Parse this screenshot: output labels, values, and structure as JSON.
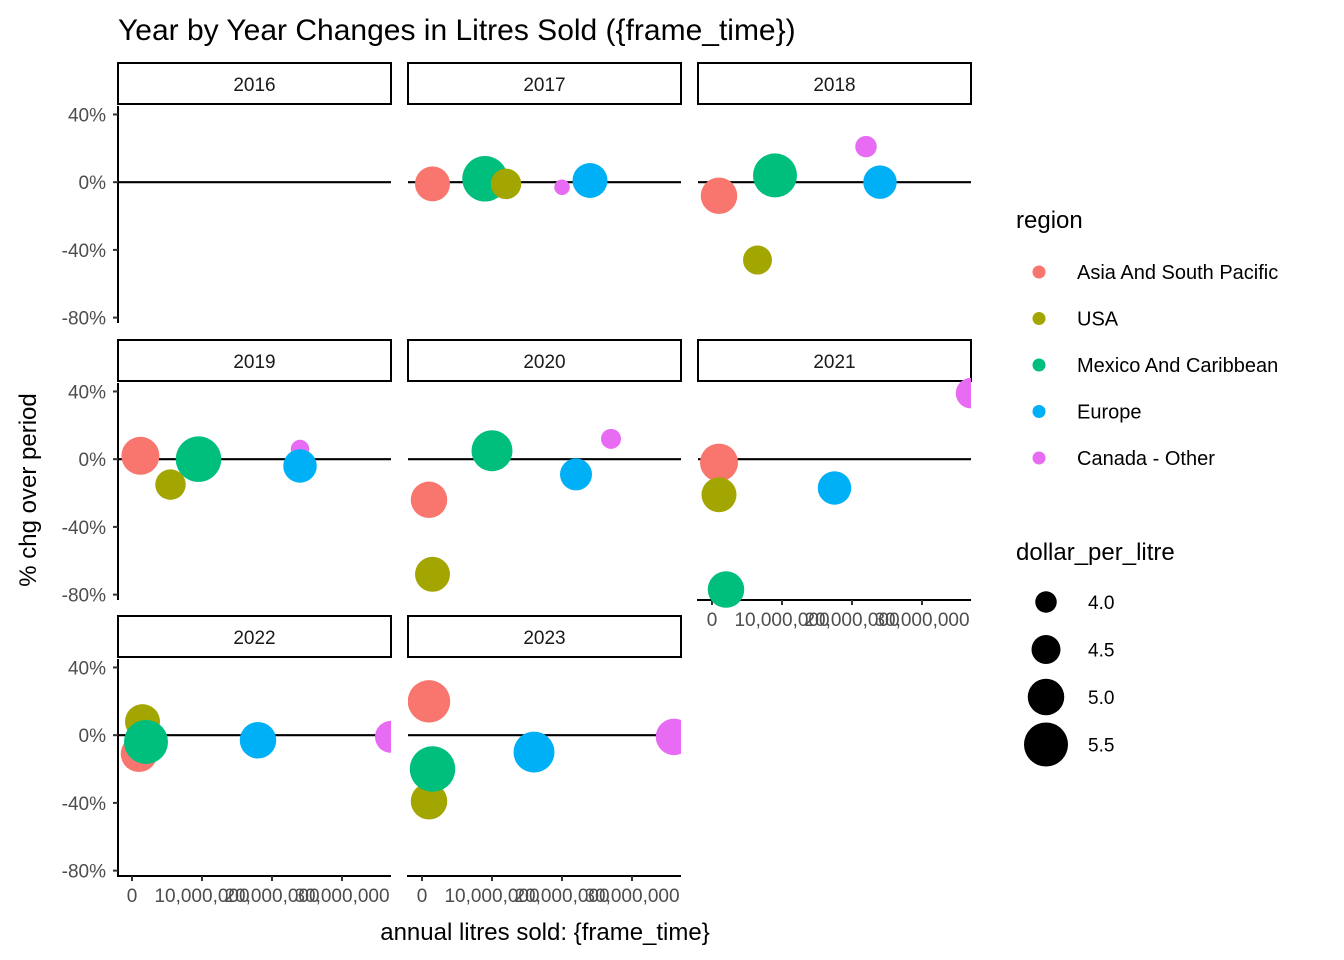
{
  "chart_data": {
    "type": "scatter",
    "title": "Year by Year Changes in Litres Sold ({frame_time})",
    "xlabel": "annual litres sold: {frame_time}",
    "ylabel": "% chg over period",
    "xlim": [
      -2000000,
      37000000
    ],
    "ylim": [
      -0.82,
      0.45
    ],
    "x_ticks": [
      0,
      10000000,
      20000000,
      30000000
    ],
    "x_tick_labels": [
      "0",
      "10,000,000",
      "20,000,000",
      "30,000,000"
    ],
    "y_ticks": [
      0.4,
      0,
      -0.4,
      -0.8
    ],
    "y_tick_labels": [
      "40%",
      "0%",
      "-40%",
      "-80%"
    ],
    "reference_line_y": 0,
    "grid": false,
    "legend_position": "right",
    "color_legend": {
      "title": "region",
      "entries": [
        {
          "name": "Asia And South Pacific",
          "color": "#F8766D"
        },
        {
          "name": "USA",
          "color": "#A3A500"
        },
        {
          "name": "Mexico And Caribbean",
          "color": "#00BF7D"
        },
        {
          "name": "Europe",
          "color": "#00B0F6"
        },
        {
          "name": "Canada - Other",
          "color": "#E76BF3"
        }
      ]
    },
    "size_legend": {
      "title": "dollar_per_litre",
      "entries": [
        {
          "label": "4.0",
          "value": 4.0
        },
        {
          "label": "4.5",
          "value": 4.5
        },
        {
          "label": "5.0",
          "value": 5.0
        },
        {
          "label": "5.5",
          "value": 5.5
        }
      ]
    },
    "panels": [
      {
        "label": "2016",
        "points": []
      },
      {
        "label": "2017",
        "points": [
          {
            "region": "Asia And South Pacific",
            "x": 1500000,
            "y": -0.01,
            "size": 4.9
          },
          {
            "region": "Mexico And Caribbean",
            "x": 9000000,
            "y": 0.02,
            "size": 5.6
          },
          {
            "region": "USA",
            "x": 12000000,
            "y": -0.01,
            "size": 4.6
          },
          {
            "region": "Canada - Other",
            "x": 20000000,
            "y": -0.03,
            "size": 3.6
          },
          {
            "region": "Europe",
            "x": 24000000,
            "y": 0.01,
            "size": 4.9
          }
        ]
      },
      {
        "label": "2018",
        "points": [
          {
            "region": "Asia And South Pacific",
            "x": 1000000,
            "y": -0.08,
            "size": 5.0
          },
          {
            "region": "USA",
            "x": 6500000,
            "y": -0.46,
            "size": 4.5
          },
          {
            "region": "Mexico And Caribbean",
            "x": 9000000,
            "y": 0.04,
            "size": 5.5
          },
          {
            "region": "Canada - Other",
            "x": 22000000,
            "y": 0.21,
            "size": 4.0
          },
          {
            "region": "Europe",
            "x": 24000000,
            "y": 0.0,
            "size": 4.8
          }
        ]
      },
      {
        "label": "2019",
        "points": [
          {
            "region": "Asia And South Pacific",
            "x": 1200000,
            "y": 0.02,
            "size": 5.1
          },
          {
            "region": "USA",
            "x": 5500000,
            "y": -0.15,
            "size": 4.6
          },
          {
            "region": "Mexico And Caribbean",
            "x": 9500000,
            "y": 0.0,
            "size": 5.6
          },
          {
            "region": "Canada - Other",
            "x": 24000000,
            "y": 0.06,
            "size": 3.8
          },
          {
            "region": "Europe",
            "x": 24000000,
            "y": -0.04,
            "size": 4.8
          }
        ]
      },
      {
        "label": "2020",
        "points": [
          {
            "region": "Asia And South Pacific",
            "x": 1000000,
            "y": -0.24,
            "size": 5.0
          },
          {
            "region": "USA",
            "x": 1500000,
            "y": -0.68,
            "size": 4.9
          },
          {
            "region": "Mexico And Caribbean",
            "x": 10000000,
            "y": 0.05,
            "size": 5.3
          },
          {
            "region": "Europe",
            "x": 22000000,
            "y": -0.09,
            "size": 4.7
          },
          {
            "region": "Canada - Other",
            "x": 27000000,
            "y": 0.12,
            "size": 3.9
          }
        ]
      },
      {
        "label": "2021",
        "points": [
          {
            "region": "Asia And South Pacific",
            "x": 1000000,
            "y": -0.02,
            "size": 5.1
          },
          {
            "region": "USA",
            "x": 1000000,
            "y": -0.21,
            "size": 4.9
          },
          {
            "region": "Mexico And Caribbean",
            "x": 2000000,
            "y": -0.77,
            "size": 5.0
          },
          {
            "region": "Europe",
            "x": 17500000,
            "y": -0.17,
            "size": 4.8
          },
          {
            "region": "Canada - Other",
            "x": 37000000,
            "y": 0.39,
            "size": 4.6
          }
        ]
      },
      {
        "label": "2022",
        "points": [
          {
            "region": "Asia And South Pacific",
            "x": 1000000,
            "y": -0.11,
            "size": 5.0
          },
          {
            "region": "USA",
            "x": 1500000,
            "y": 0.08,
            "size": 4.9
          },
          {
            "region": "Mexico And Caribbean",
            "x": 2000000,
            "y": -0.04,
            "size": 5.5
          },
          {
            "region": "Europe",
            "x": 18000000,
            "y": -0.03,
            "size": 5.0
          },
          {
            "region": "Canada - Other",
            "x": 37000000,
            "y": -0.01,
            "size": 4.7
          }
        ]
      },
      {
        "label": "2023",
        "points": [
          {
            "region": "Asia And South Pacific",
            "x": 1000000,
            "y": 0.2,
            "size": 5.4
          },
          {
            "region": "USA",
            "x": 1000000,
            "y": -0.39,
            "size": 5.0
          },
          {
            "region": "Mexico And Caribbean",
            "x": 1500000,
            "y": -0.2,
            "size": 5.6
          },
          {
            "region": "Europe",
            "x": 16000000,
            "y": -0.1,
            "size": 5.3
          },
          {
            "region": "Canada - Other",
            "x": 36000000,
            "y": -0.01,
            "size": 5.0
          }
        ]
      }
    ]
  }
}
